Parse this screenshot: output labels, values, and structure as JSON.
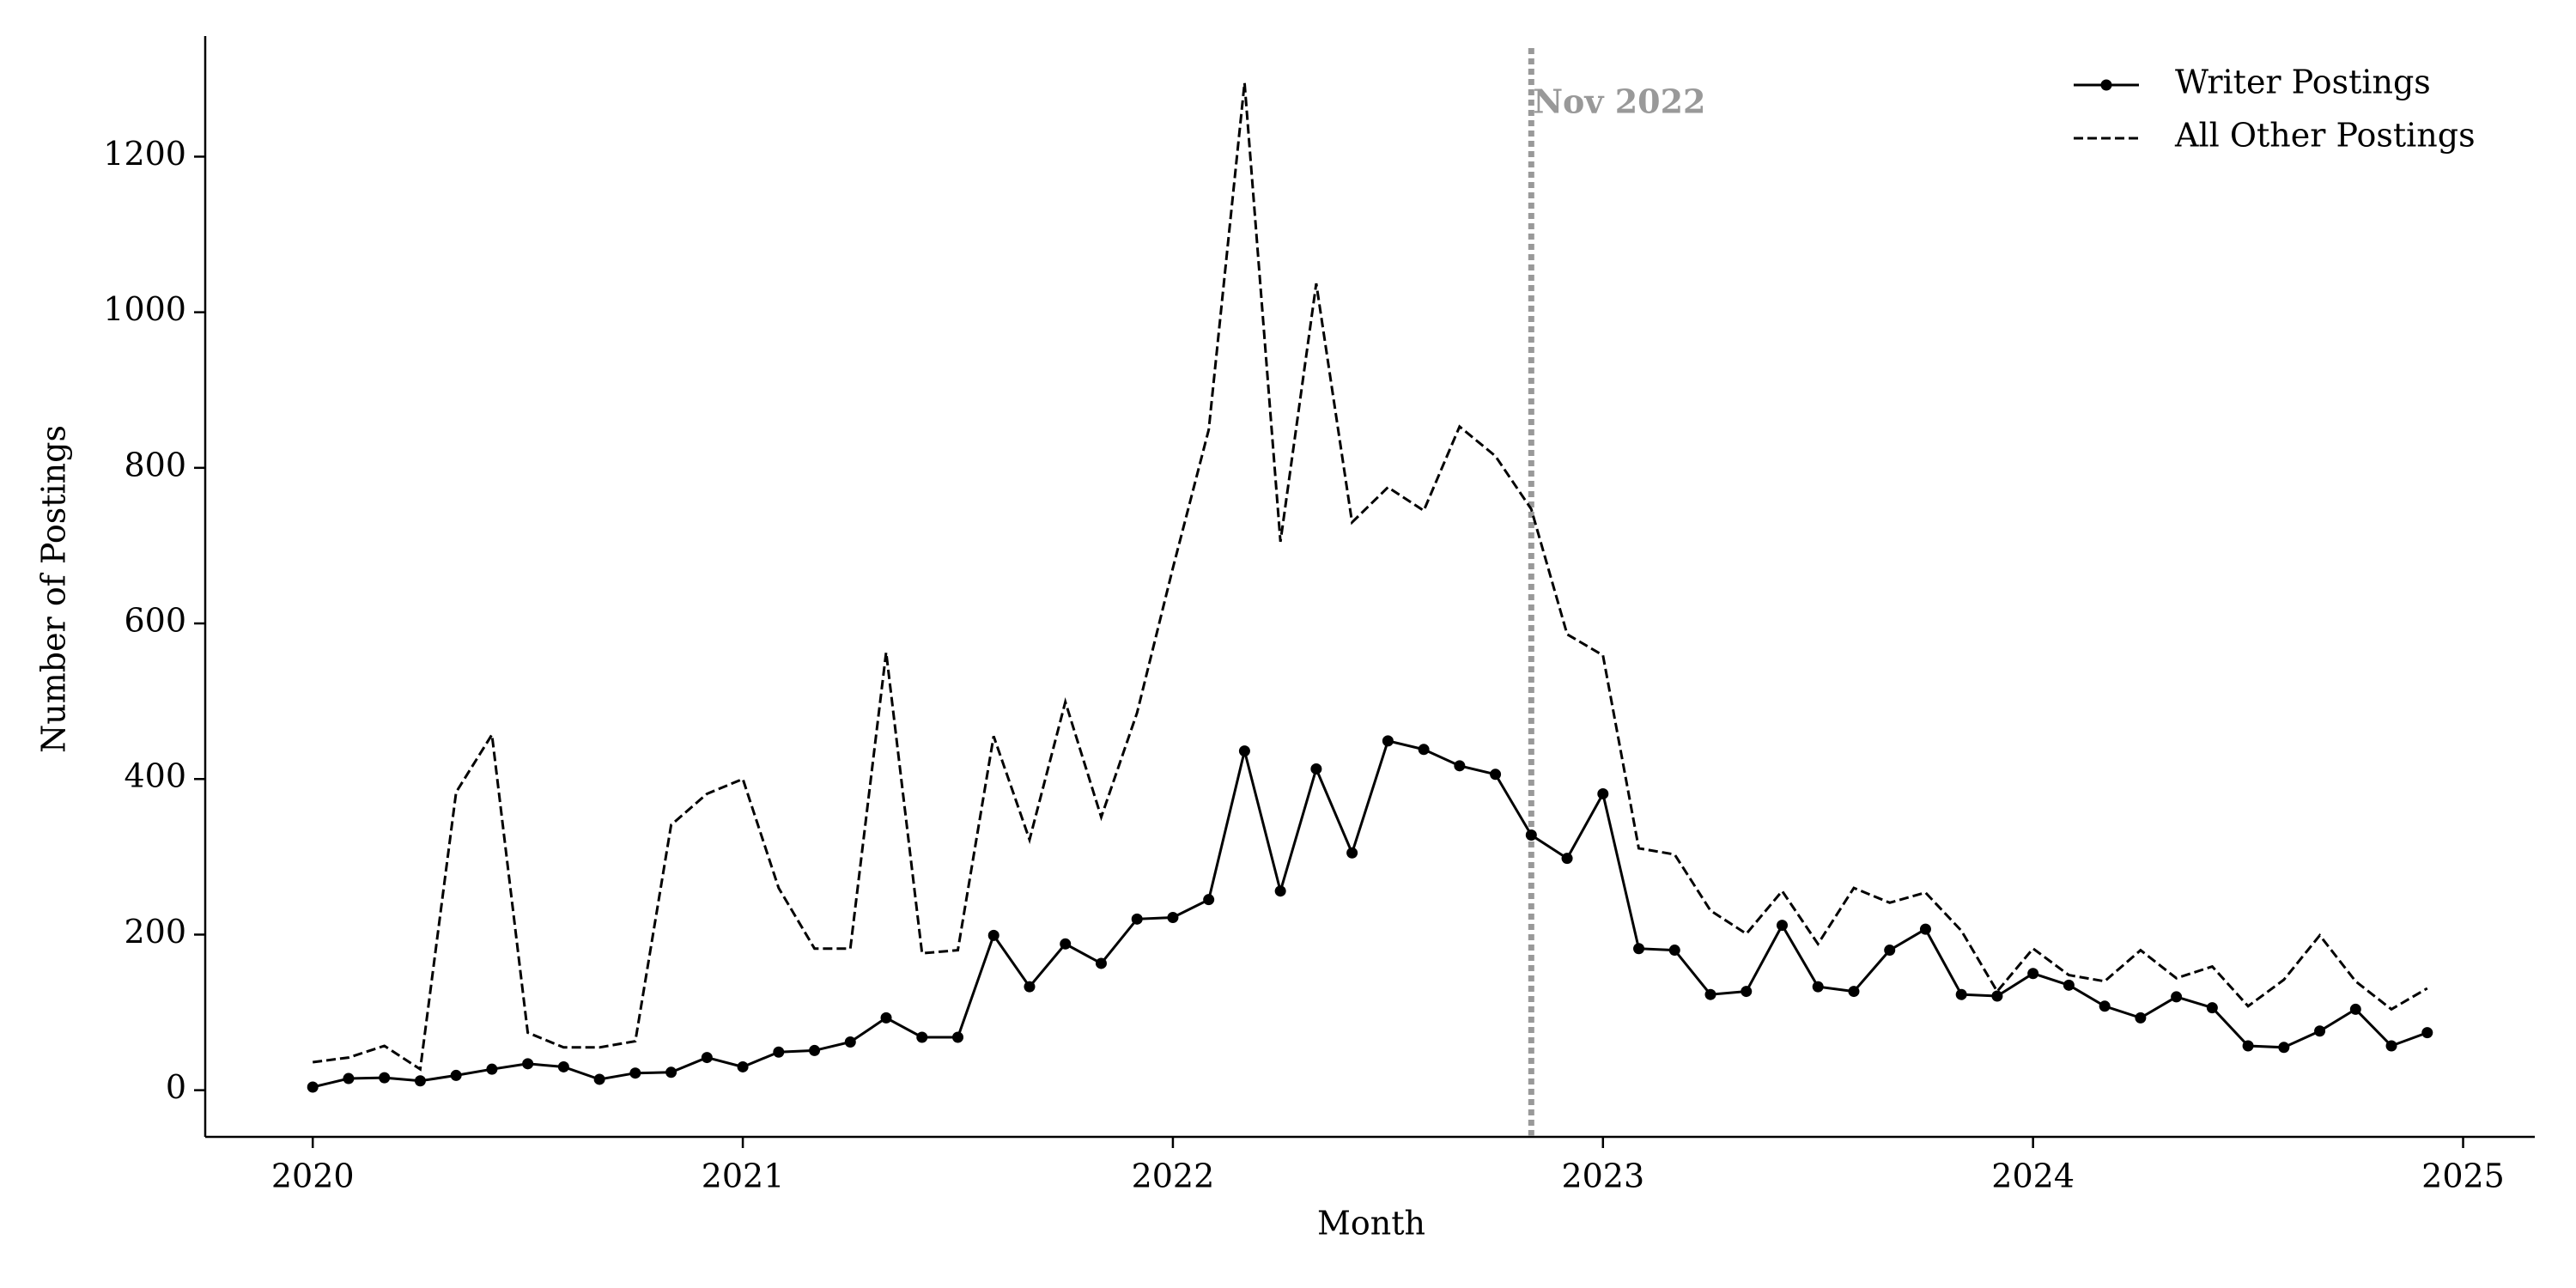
{
  "chart_data": {
    "type": "line",
    "x_label": "Month",
    "y_label": "Number of Postings",
    "x": [
      "2020-01",
      "2020-02",
      "2020-03",
      "2020-04",
      "2020-05",
      "2020-06",
      "2020-07",
      "2020-08",
      "2020-09",
      "2020-10",
      "2020-11",
      "2020-12",
      "2021-01",
      "2021-02",
      "2021-03",
      "2021-04",
      "2021-05",
      "2021-06",
      "2021-07",
      "2021-08",
      "2021-09",
      "2021-10",
      "2021-11",
      "2021-12",
      "2022-01",
      "2022-02",
      "2022-03",
      "2022-04",
      "2022-05",
      "2022-06",
      "2022-07",
      "2022-08",
      "2022-09",
      "2022-10",
      "2022-11",
      "2022-12",
      "2023-01",
      "2023-02",
      "2023-03",
      "2023-04",
      "2023-05",
      "2023-06",
      "2023-07",
      "2023-08",
      "2023-09",
      "2023-10",
      "2023-11",
      "2023-12",
      "2024-01",
      "2024-02",
      "2024-03",
      "2024-04",
      "2024-05",
      "2024-06",
      "2024-07",
      "2024-08",
      "2024-09",
      "2024-10",
      "2024-11",
      "2024-12"
    ],
    "series": [
      {
        "name": "Writer Postings",
        "color": "#000000",
        "linestyle": "solid",
        "marker": true,
        "values": [
          4,
          15,
          16,
          12,
          19,
          27,
          34,
          30,
          14,
          22,
          23,
          42,
          30,
          49,
          51,
          62,
          93,
          68,
          68,
          199,
          133,
          188,
          163,
          220,
          222,
          245,
          436,
          256,
          413,
          305,
          449,
          438,
          417,
          406,
          328,
          298,
          381,
          182,
          180,
          123,
          127,
          212,
          133,
          127,
          180,
          207,
          123,
          121,
          150,
          135,
          108,
          93,
          120,
          106,
          57,
          55,
          76,
          104,
          57,
          74
        ]
      },
      {
        "name": "All Other Postings",
        "color": "#000000",
        "linestyle": "dashed",
        "marker": false,
        "values": [
          36,
          42,
          57,
          27,
          383,
          457,
          74,
          55,
          55,
          63,
          341,
          381,
          400,
          260,
          182,
          182,
          563,
          176,
          180,
          455,
          322,
          499,
          351,
          485,
          671,
          849,
          1295,
          705,
          1037,
          730,
          775,
          745,
          853,
          815,
          747,
          586,
          559,
          311,
          303,
          231,
          201,
          256,
          188,
          260,
          241,
          254,
          205,
          127,
          182,
          148,
          140,
          180,
          144,
          159,
          108,
          142,
          199,
          140,
          104,
          131
        ]
      }
    ],
    "xlim": [
      "2019-10",
      "2025-03"
    ],
    "xticks": [
      {
        "value": "2020-01",
        "label": "2020"
      },
      {
        "value": "2021-01",
        "label": "2021"
      },
      {
        "value": "2022-01",
        "label": "2022"
      },
      {
        "value": "2023-01",
        "label": "2023"
      },
      {
        "value": "2024-01",
        "label": "2024"
      },
      {
        "value": "2025-01",
        "label": "2025"
      }
    ],
    "ylim": [
      -60,
      1355
    ],
    "yticks": [
      0,
      200,
      400,
      600,
      800,
      1000,
      1200
    ],
    "grid": false,
    "legend": "upper-right",
    "annotation": {
      "text": "Nov 2022",
      "x": "2022-11",
      "color": "#999999"
    }
  }
}
